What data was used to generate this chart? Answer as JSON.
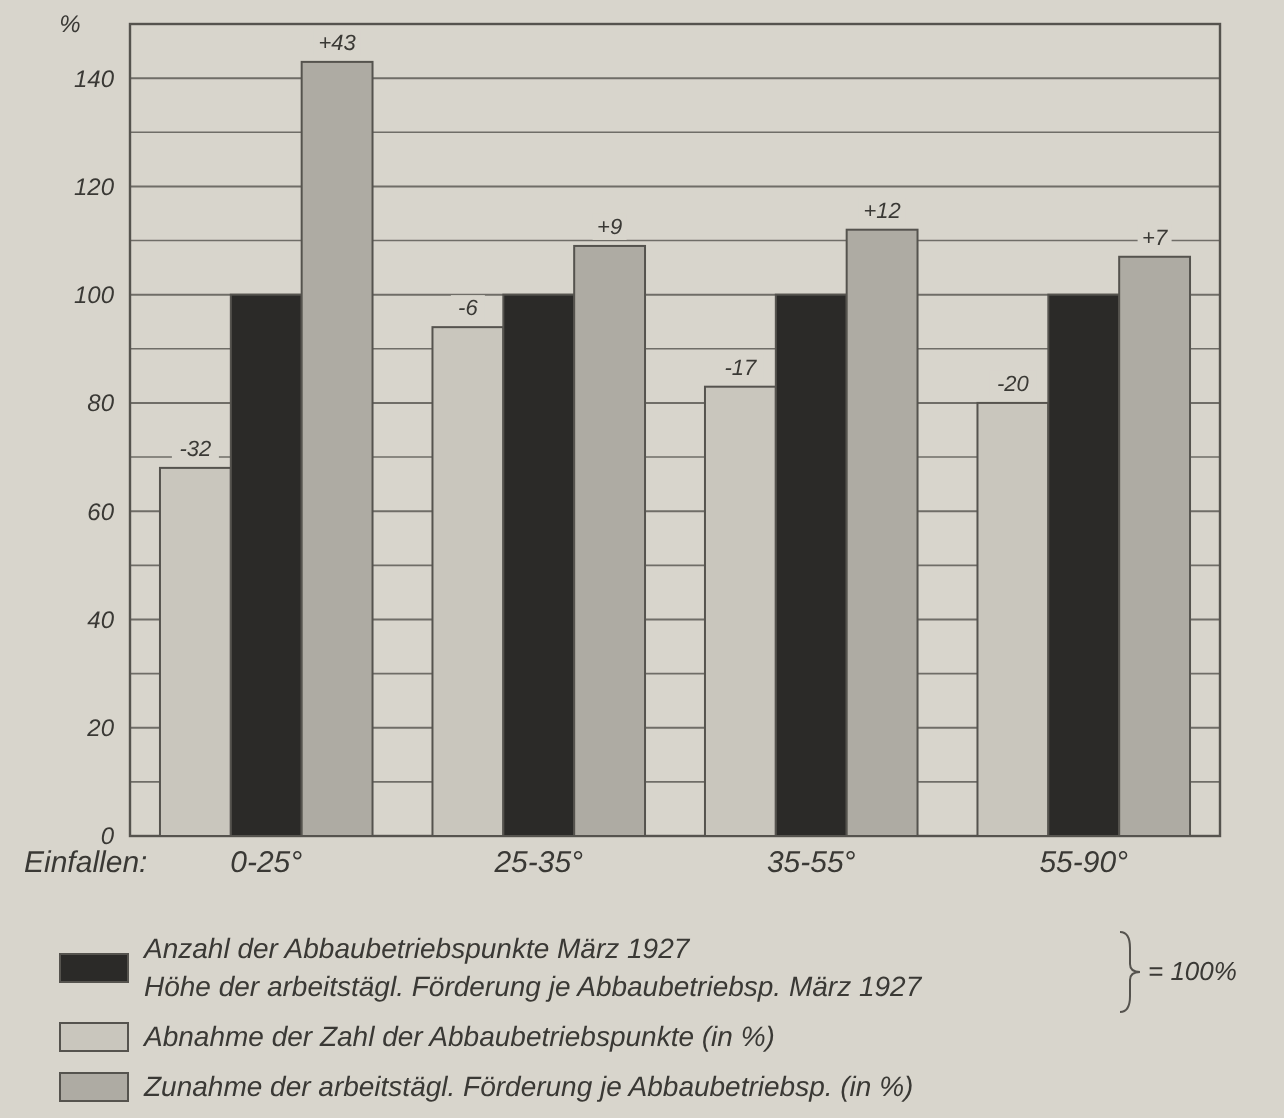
{
  "chart_data": {
    "type": "bar",
    "ylabel": "%",
    "xlabel": "Einfallen:",
    "categories": [
      "0-25°",
      "25-35°",
      "35-55°",
      "55-90°"
    ],
    "series": [
      {
        "name": "Abnahme der Zahl der Abbaubetriebspunkte (in %)",
        "color": "#c9c6bd",
        "values": [
          68,
          94,
          83,
          80
        ]
      },
      {
        "name": "Anzahl der Abbaubetriebspunkte März 1927\nHöhe der arbeitstägl. Förderung je Abbaubetriebsp. März 1927",
        "color": "#2b2a28",
        "values": [
          100,
          100,
          100,
          100
        ]
      },
      {
        "name": "Zunahme der arbeitstägl. Förderung je Abbaubetriebsp. (in %)",
        "color": "#aeaba3",
        "values": [
          143,
          109,
          112,
          107
        ]
      }
    ],
    "ylim": [
      0,
      150
    ],
    "yticks": [
      0,
      {
        "value": 10,
        "label": null
      },
      20,
      {
        "value": 30,
        "label": null
      },
      40,
      {
        "value": 50,
        "label": null
      },
      60,
      {
        "value": 70,
        "label": null
      },
      80,
      {
        "value": 90,
        "label": null
      },
      100,
      {
        "value": 110,
        "label": null
      },
      120,
      {
        "value": 130,
        "label": null
      },
      140,
      {
        "value": 150,
        "label": null
      }
    ],
    "grid": "y",
    "legend": "bottom",
    "annotations": [
      "= 100%",
      "-32",
      "+43",
      "-6",
      "+9",
      "-17",
      "+12",
      "-20",
      "+7"
    ]
  }
}
